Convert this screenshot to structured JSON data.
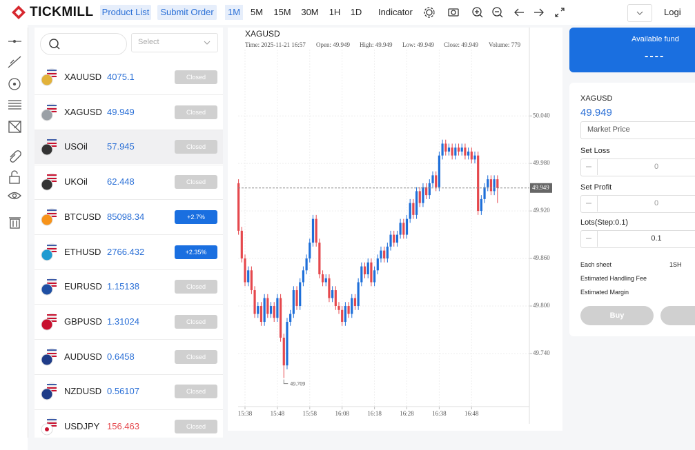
{
  "header": {
    "logo": "TICKMILL",
    "nav": [
      "Product List",
      "Submit Order"
    ],
    "timeframes": [
      "1M",
      "5M",
      "15M",
      "30M",
      "1H",
      "1D"
    ],
    "indicator": "Indicator",
    "login": "Logi"
  },
  "product_list": {
    "select_placeholder": "Select",
    "rows": [
      {
        "symbol": "XAUUSD",
        "price": "4075.1",
        "status": "Closed"
      },
      {
        "symbol": "XAGUSD",
        "price": "49.949",
        "status": "Closed"
      },
      {
        "symbol": "USOil",
        "price": "57.945",
        "status": "Closed"
      },
      {
        "symbol": "UKOil",
        "price": "62.448",
        "status": "Closed"
      },
      {
        "symbol": "BTCUSD",
        "price": "85098.34",
        "status": "+2.7%"
      },
      {
        "symbol": "ETHUSD",
        "price": "2766.432",
        "status": "+2.35%"
      },
      {
        "symbol": "EURUSD",
        "price": "1.15138",
        "status": "Closed"
      },
      {
        "symbol": "GBPUSD",
        "price": "1.31024",
        "status": "Closed"
      },
      {
        "symbol": "AUDUSD",
        "price": "0.6458",
        "status": "Closed"
      },
      {
        "symbol": "NZDUSD",
        "price": "0.56107",
        "status": "Closed"
      },
      {
        "symbol": "USDJPY",
        "price": "156.463",
        "status": "Closed"
      }
    ]
  },
  "chart_data": {
    "type": "candlestick",
    "title": "XAGUSD",
    "info": [
      "Time: 2025-11-21 16:57",
      "Open: 49.949",
      "High: 49.949",
      "Low: 49.949",
      "Close: 49.949",
      "Volume: 779"
    ],
    "x": [
      "15:36",
      "15:37",
      "15:38",
      "15:39",
      "15:40",
      "15:41",
      "15:42",
      "15:43",
      "15:44",
      "15:45",
      "15:46",
      "15:47",
      "15:48",
      "15:49",
      "15:50",
      "15:51",
      "15:52",
      "15:53",
      "15:54",
      "15:55",
      "15:56",
      "15:57",
      "15:58",
      "15:59",
      "16:00",
      "16:01",
      "16:02",
      "16:03",
      "16:04",
      "16:05",
      "16:06",
      "16:07",
      "16:08",
      "16:09",
      "16:10",
      "16:11",
      "16:12",
      "16:13",
      "16:14",
      "16:15",
      "16:16",
      "16:17",
      "16:18",
      "16:19",
      "16:20",
      "16:21",
      "16:22",
      "16:23",
      "16:24",
      "16:25",
      "16:26",
      "16:27",
      "16:28",
      "16:29",
      "16:30",
      "16:31",
      "16:32",
      "16:33",
      "16:34",
      "16:35",
      "16:36",
      "16:37",
      "16:38",
      "16:39",
      "16:40",
      "16:41",
      "16:42",
      "16:43",
      "16:44",
      "16:45",
      "16:46",
      "16:47",
      "16:48",
      "16:49",
      "16:50",
      "16:51",
      "16:52",
      "16:53",
      "16:54",
      "16:55",
      "16:56"
    ],
    "ohlc": [
      [
        49.955,
        49.96,
        49.89,
        49.895
      ],
      [
        49.895,
        49.9,
        49.855,
        49.86
      ],
      [
        49.86,
        49.865,
        49.825,
        49.83
      ],
      [
        49.83,
        49.85,
        49.825,
        49.845
      ],
      [
        49.845,
        49.85,
        49.815,
        49.82
      ],
      [
        49.82,
        49.825,
        49.785,
        49.79
      ],
      [
        49.79,
        49.805,
        49.785,
        49.8
      ],
      [
        49.8,
        49.805,
        49.775,
        49.78
      ],
      [
        49.78,
        49.815,
        49.775,
        49.81
      ],
      [
        49.81,
        49.815,
        49.785,
        49.79
      ],
      [
        49.79,
        49.805,
        49.785,
        49.8
      ],
      [
        49.8,
        49.805,
        49.78,
        49.785
      ],
      [
        49.785,
        49.815,
        49.78,
        49.81
      ],
      [
        49.81,
        49.815,
        49.755,
        49.76
      ],
      [
        49.76,
        49.765,
        49.709,
        49.725
      ],
      [
        49.725,
        49.785,
        49.72,
        49.78
      ],
      [
        49.78,
        49.795,
        49.775,
        49.79
      ],
      [
        49.79,
        49.825,
        49.785,
        49.82
      ],
      [
        49.82,
        49.825,
        49.795,
        49.8
      ],
      [
        49.8,
        49.835,
        49.795,
        49.83
      ],
      [
        49.83,
        49.85,
        49.825,
        49.845
      ],
      [
        49.845,
        49.865,
        49.84,
        49.86
      ],
      [
        49.86,
        49.885,
        49.855,
        49.88
      ],
      [
        49.88,
        49.915,
        49.875,
        49.91
      ],
      [
        49.91,
        49.915,
        49.875,
        49.88
      ],
      [
        49.88,
        49.885,
        49.835,
        49.84
      ],
      [
        49.84,
        49.845,
        49.825,
        49.83
      ],
      [
        49.83,
        49.84,
        49.825,
        49.835
      ],
      [
        49.835,
        49.84,
        49.805,
        49.81
      ],
      [
        49.81,
        49.825,
        49.805,
        49.82
      ],
      [
        49.82,
        49.825,
        49.795,
        49.8
      ],
      [
        49.8,
        49.805,
        49.79,
        49.795
      ],
      [
        49.795,
        49.8,
        49.775,
        49.78
      ],
      [
        49.78,
        49.805,
        49.775,
        49.8
      ],
      [
        49.8,
        49.805,
        49.785,
        49.79
      ],
      [
        49.79,
        49.815,
        49.785,
        49.81
      ],
      [
        49.81,
        49.815,
        49.795,
        49.8
      ],
      [
        49.8,
        49.835,
        49.795,
        49.83
      ],
      [
        49.83,
        49.855,
        49.825,
        49.85
      ],
      [
        49.85,
        49.855,
        49.835,
        49.84
      ],
      [
        49.84,
        49.86,
        49.835,
        49.855
      ],
      [
        49.855,
        49.86,
        49.825,
        49.83
      ],
      [
        49.83,
        49.85,
        49.825,
        49.845
      ],
      [
        49.845,
        49.865,
        49.84,
        49.86
      ],
      [
        49.86,
        49.875,
        49.855,
        49.87
      ],
      [
        49.87,
        49.875,
        49.855,
        49.86
      ],
      [
        49.86,
        49.88,
        49.855,
        49.875
      ],
      [
        49.875,
        49.895,
        49.87,
        49.89
      ],
      [
        49.89,
        49.895,
        49.875,
        49.88
      ],
      [
        49.88,
        49.895,
        49.875,
        49.89
      ],
      [
        49.89,
        49.91,
        49.885,
        49.905
      ],
      [
        49.905,
        49.91,
        49.885,
        49.89
      ],
      [
        49.89,
        49.915,
        49.885,
        49.91
      ],
      [
        49.91,
        49.935,
        49.905,
        49.93
      ],
      [
        49.93,
        49.935,
        49.91,
        49.915
      ],
      [
        49.915,
        49.95,
        49.91,
        49.945
      ],
      [
        49.945,
        49.95,
        49.925,
        49.93
      ],
      [
        49.93,
        49.955,
        49.925,
        49.95
      ],
      [
        49.95,
        49.955,
        49.935,
        49.94
      ],
      [
        49.94,
        49.96,
        49.935,
        49.955
      ],
      [
        49.955,
        49.97,
        49.95,
        49.965
      ],
      [
        49.965,
        49.97,
        49.945,
        49.95
      ],
      [
        49.95,
        49.995,
        49.945,
        49.99
      ],
      [
        49.99,
        50.01,
        49.985,
        50.005
      ],
      [
        50.005,
        50.01,
        49.99,
        49.995
      ],
      [
        49.995,
        50.005,
        49.99,
        50.0
      ],
      [
        50.0,
        50.005,
        49.985,
        49.99
      ],
      [
        49.99,
        50.005,
        49.985,
        50.0
      ],
      [
        50.0,
        50.005,
        49.99,
        49.995
      ],
      [
        49.995,
        50.005,
        49.99,
        50.0
      ],
      [
        50.0,
        50.005,
        49.985,
        49.99
      ],
      [
        49.99,
        50.0,
        49.985,
        49.995
      ],
      [
        49.995,
        50.0,
        49.98,
        49.985
      ],
      [
        49.985,
        49.995,
        49.98,
        49.99
      ],
      [
        49.99,
        49.995,
        49.915,
        49.92
      ],
      [
        49.92,
        49.94,
        49.915,
        49.935
      ],
      [
        49.935,
        49.955,
        49.93,
        49.95
      ],
      [
        49.95,
        49.965,
        49.945,
        49.96
      ],
      [
        49.96,
        49.965,
        49.94,
        49.945
      ],
      [
        49.945,
        49.965,
        49.94,
        49.96
      ],
      [
        49.96,
        49.965,
        49.93,
        49.949
      ]
    ],
    "up_color": "#1e6fd9",
    "down_color": "#e5484d",
    "ylim": [
      49.673,
      50.115
    ],
    "yticks": [
      {
        "value": 49.74,
        "label": "49.740"
      },
      {
        "value": 49.8,
        "label": "49.800"
      },
      {
        "value": 49.86,
        "label": "49.860"
      },
      {
        "value": 49.92,
        "label": "49.920"
      },
      {
        "value": 49.98,
        "label": "49.980"
      },
      {
        "value": 50.04,
        "label": "50.040"
      }
    ],
    "xticks": [
      "15:38",
      "15:48",
      "15:58",
      "16:08",
      "16:18",
      "16:28",
      "16:38",
      "16:48"
    ],
    "grid": true,
    "current_price": 49.949,
    "low_marker": {
      "x": "15:50",
      "value": 49.709
    }
  },
  "order_panel": {
    "fund_label": "Available fund",
    "fund_value": "----",
    "symbol": "XAGUSD",
    "price": "49.949",
    "order_type": "Market Price",
    "set_loss": "Set Loss",
    "loss_value": "0",
    "set_profit": "Set Profit",
    "profit_value": "0",
    "lots_label": "Lots(Step:0.1)",
    "lots_value": "0.1",
    "each_sheet": "Each sheet",
    "each_sheet_value": "1SH",
    "handling_fee": "Estimated Handling Fee",
    "margin": "Estimated Margin",
    "buy": "Buy"
  }
}
